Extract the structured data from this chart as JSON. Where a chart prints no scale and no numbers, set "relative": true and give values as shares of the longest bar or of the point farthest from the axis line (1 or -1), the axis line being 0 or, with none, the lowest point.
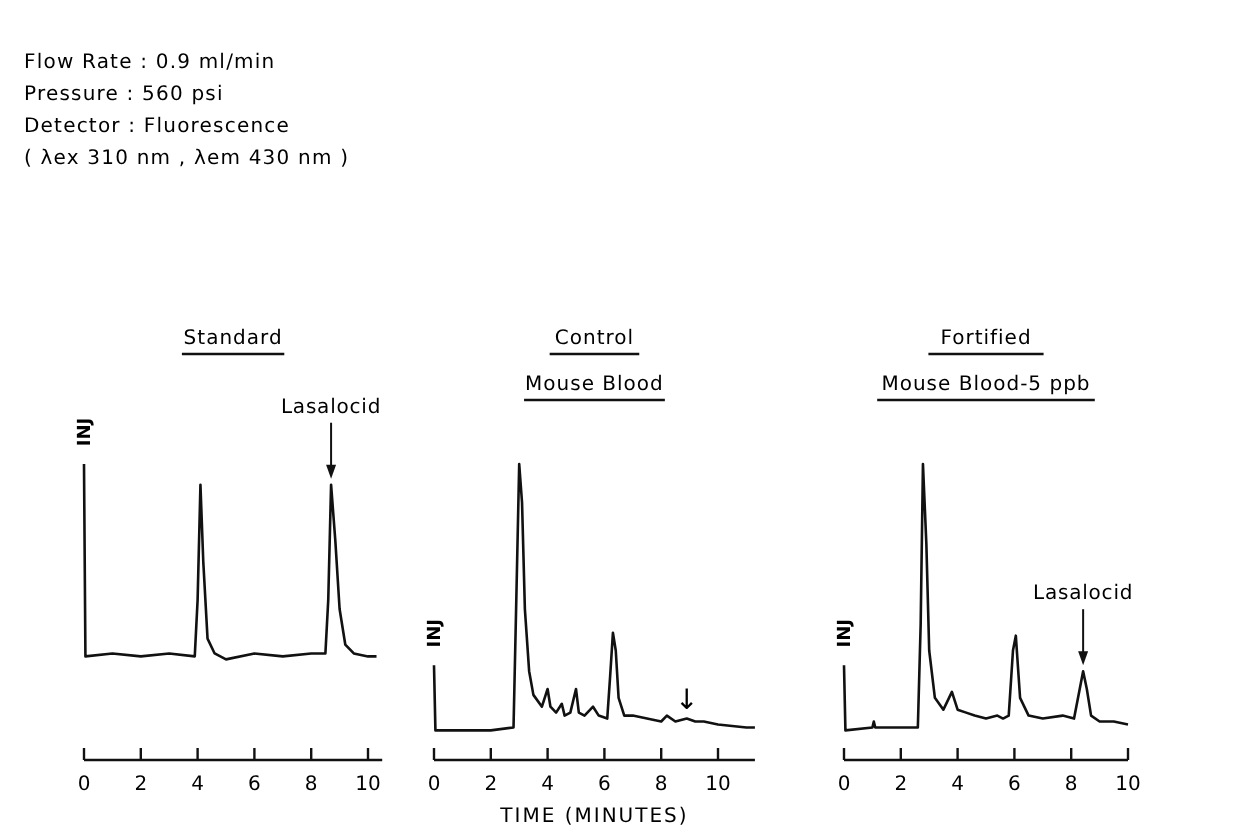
{
  "chart_data": [
    {
      "type": "other",
      "annotations": [
        "Flow Rate : 0.9 ml/min",
        "Pressure : 560 psi",
        "Detector : Fluorescence",
        "( λex 310 nm , λem 430 nm )"
      ]
    },
    {
      "type": "line",
      "title": "Standard",
      "relative": true,
      "xlim": [
        0,
        10.5
      ],
      "xticks": [
        0,
        2,
        4,
        6,
        8,
        10
      ],
      "annotations": [
        {
          "text": "INJ",
          "x": 0,
          "y": 1
        },
        {
          "text": "Lasalocid",
          "x": 8.7,
          "y": 0.93
        }
      ],
      "x": [
        0,
        0.05,
        1,
        2,
        3,
        3.9,
        4.0,
        4.1,
        4.2,
        4.35,
        4.6,
        5,
        6,
        7,
        8,
        8.5,
        8.6,
        8.7,
        8.85,
        9.0,
        9.2,
        9.5,
        10,
        10.3
      ],
      "series": [
        {
          "color": "#111111",
          "values": [
            1,
            0.35,
            0.36,
            0.35,
            0.36,
            0.35,
            0.54,
            0.93,
            0.67,
            0.41,
            0.36,
            0.34,
            0.36,
            0.35,
            0.36,
            0.36,
            0.54,
            0.93,
            0.74,
            0.51,
            0.39,
            0.36,
            0.35,
            0.35
          ]
        }
      ]
    },
    {
      "type": "line",
      "title": "Control",
      "subtitle": "Mouse Blood",
      "xlabel": "TIME (MINUTES)",
      "relative": true,
      "xlim": [
        0,
        11.3
      ],
      "xticks": [
        0,
        2,
        4,
        6,
        8,
        10
      ],
      "annotations": [
        {
          "text": "INJ",
          "x": 0,
          "y": 0.32
        },
        {
          "text": "↓",
          "x": 8.9,
          "y": 0.14
        }
      ],
      "x": [
        0,
        0.05,
        1,
        2,
        2.8,
        2.9,
        3.0,
        3.1,
        3.2,
        3.35,
        3.5,
        3.8,
        4.0,
        4.1,
        4.3,
        4.5,
        4.6,
        4.8,
        5.0,
        5.1,
        5.3,
        5.6,
        5.8,
        6.1,
        6.2,
        6.3,
        6.4,
        6.5,
        6.7,
        7,
        7.5,
        8,
        8.2,
        8.5,
        8.9,
        9.2,
        9.5,
        10,
        11,
        11.3
      ],
      "series": [
        {
          "color": "#111111",
          "values": [
            0.32,
            0.1,
            0.1,
            0.1,
            0.11,
            0.55,
            1,
            0.87,
            0.51,
            0.3,
            0.22,
            0.18,
            0.24,
            0.18,
            0.16,
            0.19,
            0.15,
            0.16,
            0.24,
            0.16,
            0.15,
            0.18,
            0.15,
            0.14,
            0.28,
            0.43,
            0.37,
            0.21,
            0.15,
            0.15,
            0.14,
            0.13,
            0.15,
            0.13,
            0.14,
            0.13,
            0.13,
            0.12,
            0.11,
            0.11
          ]
        }
      ]
    },
    {
      "type": "line",
      "title": "Fortified",
      "subtitle": "Mouse Blood-5 ppb",
      "relative": true,
      "xlim": [
        0,
        10
      ],
      "xticks": [
        0,
        2,
        4,
        6,
        8,
        10
      ],
      "annotations": [
        {
          "text": "INJ",
          "x": 0,
          "y": 0.32
        },
        {
          "text": "Lasalocid",
          "x": 8.42,
          "y": 0.3
        }
      ],
      "x": [
        0,
        0.05,
        1,
        1.05,
        1.1,
        2,
        2.6,
        2.7,
        2.78,
        2.9,
        3.0,
        3.2,
        3.5,
        3.8,
        4.0,
        4.3,
        4.6,
        5.0,
        5.4,
        5.6,
        5.8,
        5.95,
        6.05,
        6.2,
        6.5,
        7,
        7.7,
        8.1,
        8.3,
        8.42,
        8.55,
        8.7,
        9,
        9.5,
        10
      ],
      "series": [
        {
          "color": "#111111",
          "values": [
            0.32,
            0.1,
            0.11,
            0.13,
            0.11,
            0.11,
            0.11,
            0.46,
            1,
            0.73,
            0.37,
            0.21,
            0.17,
            0.23,
            0.17,
            0.16,
            0.15,
            0.14,
            0.15,
            0.14,
            0.15,
            0.37,
            0.42,
            0.21,
            0.15,
            0.14,
            0.15,
            0.14,
            0.24,
            0.3,
            0.24,
            0.15,
            0.13,
            0.13,
            0.12
          ]
        }
      ]
    }
  ]
}
